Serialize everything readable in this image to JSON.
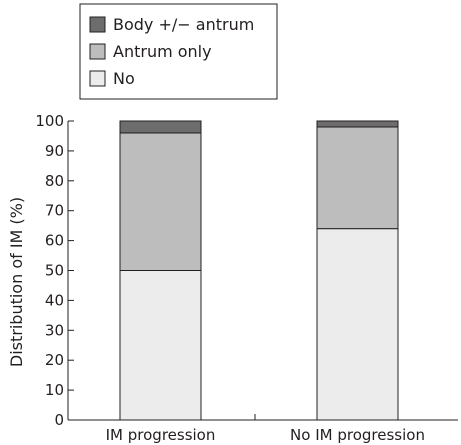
{
  "chart_data": {
    "type": "bar",
    "stacked": true,
    "categories": [
      "IM progression",
      "No IM progression"
    ],
    "series": [
      {
        "name": "No",
        "values": [
          50,
          64
        ],
        "color": "#ececec"
      },
      {
        "name": "Antrum only",
        "values": [
          46,
          34
        ],
        "color": "#bdbdbd"
      },
      {
        "name": "Body +/− antrum",
        "values": [
          4,
          2
        ],
        "color": "#6d6d6d"
      }
    ],
    "legend_order": [
      "Body +/− antrum",
      "Antrum only",
      "No"
    ],
    "legend_position": "top-left",
    "ylabel": "Distribution of IM (%)",
    "xlabel": "",
    "ylim": [
      0,
      100
    ],
    "yticks": [
      0,
      10,
      20,
      30,
      40,
      50,
      60,
      70,
      80,
      90,
      100
    ],
    "grid": false
  }
}
